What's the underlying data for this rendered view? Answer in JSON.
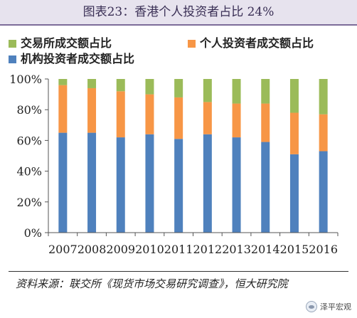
{
  "header": {
    "title": "图表23：香港个人投资者占比 24%"
  },
  "chart_data": {
    "type": "bar",
    "stacked": true,
    "categories": [
      "2007",
      "2008",
      "2009",
      "2010",
      "2011",
      "2012",
      "2013",
      "2014",
      "2015",
      "2016"
    ],
    "series": [
      {
        "name": "机构投资者成交额占比",
        "color": "#4f81bd",
        "values": [
          65,
          65,
          62,
          64,
          61,
          64,
          62,
          59,
          51,
          53
        ]
      },
      {
        "name": "个人投资者成交额占比",
        "color": "#f79646",
        "values": [
          31,
          29,
          30,
          26,
          27,
          21,
          22,
          25,
          27,
          24
        ]
      },
      {
        "name": "交易所成交额占比",
        "color": "#9bbb59",
        "values": [
          4,
          6,
          8,
          10,
          12,
          15,
          16,
          16,
          22,
          23
        ]
      }
    ],
    "ylim": [
      0,
      100
    ],
    "yticks": [
      "0%",
      "20%",
      "40%",
      "60%",
      "80%",
      "100%"
    ],
    "ytick_values": [
      0,
      20,
      40,
      60,
      80,
      100
    ],
    "legend_position": "top",
    "grid": false
  },
  "source": {
    "text": "资料来源：联交所《现货市场交易研究调查》，恒大研究院"
  },
  "watermark": {
    "text": "泽平宏观"
  }
}
